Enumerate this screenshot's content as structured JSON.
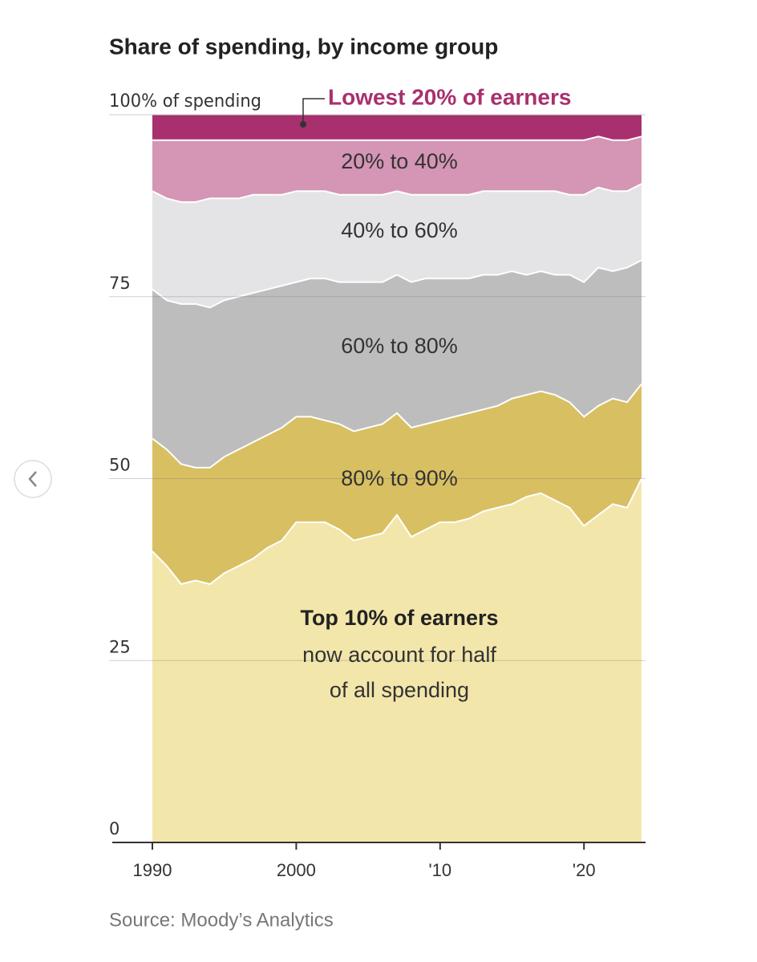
{
  "chart_data": {
    "type": "stacked_area",
    "title": "Share of spending, by income group",
    "source": "Source: Moody’s Analytics",
    "annotation": [
      "now account for half",
      "of all spending"
    ],
    "x": [
      1990,
      1991,
      1992,
      1993,
      1994,
      1995,
      1996,
      1997,
      1998,
      1999,
      2000,
      2001,
      2002,
      2003,
      2004,
      2005,
      2006,
      2007,
      2008,
      2009,
      2010,
      2011,
      2012,
      2013,
      2014,
      2015,
      2016,
      2017,
      2018,
      2019,
      2020,
      2021,
      2022,
      2023,
      2024
    ],
    "xlim": [
      1990,
      2024
    ],
    "xticks": [
      1990,
      2000,
      {
        "value": 2010,
        "label": "'10"
      },
      {
        "value": 2020,
        "label": "'20"
      }
    ],
    "ylim": [
      0,
      100
    ],
    "yticks": [
      0,
      25,
      50,
      75,
      {
        "value": 100,
        "label": "100% of spending"
      }
    ],
    "grid": true,
    "series": [
      {
        "name": "Top 10% of earners",
        "color": "#f3e6ab",
        "values": [
          40,
          38,
          35.5,
          36,
          35.5,
          37,
          38,
          39,
          40.5,
          41.5,
          44,
          44,
          44,
          43,
          41.5,
          42,
          42.5,
          45,
          42,
          43,
          44,
          44,
          44.5,
          45.5,
          46,
          46.5,
          47.5,
          48,
          47,
          46,
          43.5,
          45,
          46.5,
          46,
          50
        ]
      },
      {
        "name": "80% to 90%",
        "color": "#d8bf61",
        "values": [
          15.5,
          16,
          16.5,
          15.5,
          16,
          16,
          16,
          16,
          15.5,
          15.5,
          14.5,
          14.5,
          14,
          14.5,
          15,
          15,
          15,
          14,
          15,
          14.5,
          14,
          14.5,
          14.5,
          14,
          14,
          14.5,
          14,
          14,
          14.5,
          14.5,
          15,
          15,
          14.5,
          14.5,
          13
        ]
      },
      {
        "name": "60% to 80%",
        "color": "#bdbdbd",
        "values": [
          20.5,
          20.5,
          22,
          22.5,
          22,
          21.5,
          21,
          20.5,
          20,
          19.5,
          18.5,
          19,
          19.5,
          19.5,
          20.5,
          20,
          19.5,
          19,
          20,
          20,
          19.5,
          19,
          18.5,
          18.5,
          18,
          17.5,
          16.5,
          16.5,
          16.5,
          17.5,
          18.5,
          19,
          17.5,
          18.5,
          17
        ]
      },
      {
        "name": "40% to 60%",
        "color": "#e4e4e6",
        "values": [
          13.5,
          14,
          14,
          14,
          15,
          14,
          13.5,
          13.5,
          13,
          12.5,
          12.5,
          12,
          12,
          12,
          12,
          12,
          12,
          11.5,
          12,
          11.5,
          11.5,
          11.5,
          11.5,
          11.5,
          11.5,
          11,
          11.5,
          11,
          11.5,
          11,
          12,
          11,
          11,
          10.5,
          10.5
        ]
      },
      {
        "name": "20% to 40%",
        "color": "#d595b4",
        "values": [
          7,
          8,
          8.5,
          8.5,
          8,
          8,
          8,
          7.5,
          7.5,
          7.5,
          7,
          7,
          7,
          7.5,
          7.5,
          7.5,
          7.5,
          7,
          7.5,
          7.5,
          7.5,
          7.5,
          7.5,
          7,
          7,
          7,
          7,
          7,
          7,
          7.5,
          7.5,
          7,
          7,
          7,
          6.5
        ]
      },
      {
        "name": "Lowest 20% of earners",
        "color": "#a8306e",
        "values": [
          3.5,
          3.5,
          3.5,
          3.5,
          3.5,
          3.5,
          3.5,
          3.5,
          3.5,
          3.5,
          3.5,
          3.5,
          3.5,
          3.5,
          3.5,
          3.5,
          3.5,
          3.5,
          3.5,
          3.5,
          3.5,
          3.5,
          3.5,
          3.5,
          3.5,
          3.5,
          3.5,
          3.5,
          3.5,
          3.5,
          3.5,
          3,
          3.5,
          3.5,
          3
        ]
      }
    ]
  }
}
